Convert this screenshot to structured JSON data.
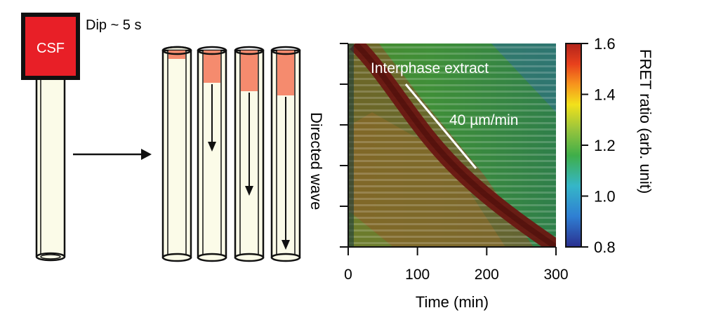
{
  "dip_label": "Dip ~ 5 s",
  "csf_label": "CSF",
  "directed_wave_label": "Directed wave",
  "kymograph": {
    "annotation": "Interphase extract",
    "speed_label": "40 µm/min",
    "x_axis": {
      "label": "Time (min)",
      "ticks": [
        "0",
        "100",
        "200",
        "300"
      ],
      "range": [
        0,
        300
      ]
    },
    "colorbar": {
      "label": "FRET ratio (arb. unit)",
      "ticks": [
        "1.6",
        "1.4",
        "1.2",
        "1.0",
        "0.8"
      ],
      "range": [
        0.8,
        1.6
      ],
      "colormap": [
        "#2a2f8f",
        "#2f7fd3",
        "#35b6c8",
        "#3fae49",
        "#9ac53c",
        "#f2e11b",
        "#f7941d",
        "#e8401c",
        "#b2241b"
      ]
    }
  },
  "colors": {
    "tube_fill": "#fbfbe8",
    "csf_red": "#e81f27",
    "extract_salmon": "#f58b6e"
  }
}
